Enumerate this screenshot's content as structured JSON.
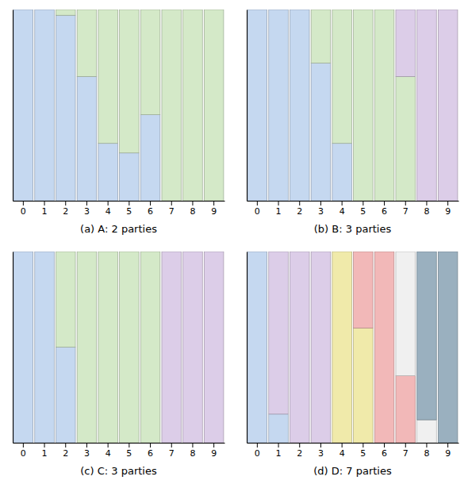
{
  "chart_data": [
    {
      "type": "bar",
      "stacked": true,
      "tick_labels": "x",
      "x_label": "(a) A: 2 parties",
      "categories": [
        "0",
        "1",
        "2",
        "3",
        "4",
        "5",
        "6",
        "7",
        "8",
        "9"
      ],
      "ylim": [
        0,
        1.0
      ],
      "series": [
        {
          "color": "#c5d8f0",
          "values": [
            1.0,
            1.0,
            0.97,
            0.65,
            0.3,
            0.25,
            0.45,
            0.0,
            0.0,
            0.0
          ]
        },
        {
          "color": "#d4e9c8",
          "values": [
            0.0,
            0.0,
            0.03,
            0.35,
            0.7,
            0.75,
            0.55,
            1.0,
            1.0,
            1.0
          ]
        }
      ]
    },
    {
      "type": "bar",
      "stacked": true,
      "tick_labels": "x",
      "x_label": "(b) B: 3 parties",
      "categories": [
        "0",
        "1",
        "2",
        "3",
        "4",
        "5",
        "6",
        "7",
        "8",
        "9"
      ],
      "ylim": [
        0,
        1.0
      ],
      "series": [
        {
          "color": "#c5d8f0",
          "values": [
            1.0,
            1.0,
            1.0,
            0.72,
            0.3,
            0.0,
            0.0,
            0.0,
            0.0,
            0.0
          ]
        },
        {
          "color": "#d4e9c8",
          "values": [
            0.0,
            0.0,
            0.0,
            0.28,
            0.7,
            1.0,
            1.0,
            0.65,
            0.0,
            0.0
          ]
        },
        {
          "color": "#dccde8",
          "values": [
            0.0,
            0.0,
            0.0,
            0.0,
            0.0,
            0.0,
            0.0,
            0.35,
            1.0,
            1.0
          ]
        }
      ]
    },
    {
      "type": "bar",
      "stacked": true,
      "tick_labels": "x",
      "x_label": "(c) C: 3 parties",
      "categories": [
        "0",
        "1",
        "2",
        "3",
        "4",
        "5",
        "6",
        "7",
        "8",
        "9"
      ],
      "ylim": [
        0,
        1.0
      ],
      "series": [
        {
          "color": "#c5d8f0",
          "values": [
            1.0,
            1.0,
            0.5,
            0.0,
            0.0,
            0.0,
            0.0,
            0.0,
            0.0,
            0.0
          ]
        },
        {
          "color": "#d4e9c8",
          "values": [
            0.0,
            0.0,
            0.5,
            1.0,
            1.0,
            1.0,
            1.0,
            0.0,
            0.0,
            0.0
          ]
        },
        {
          "color": "#dccde8",
          "values": [
            0.0,
            0.0,
            0.0,
            0.0,
            0.0,
            0.0,
            0.0,
            1.0,
            1.0,
            1.0
          ]
        }
      ]
    },
    {
      "type": "bar",
      "stacked": true,
      "tick_labels": "x",
      "x_label": "(d) D: 7 parties",
      "categories": [
        "0",
        "1",
        "2",
        "3",
        "4",
        "5",
        "6",
        "7",
        "8",
        "9"
      ],
      "ylim": [
        0,
        1.0
      ],
      "series": [
        {
          "color": "#c5d8f0",
          "values": [
            1.0,
            0.15,
            0.0,
            0.0,
            0.0,
            0.0,
            0.0,
            0.0,
            0.0,
            0.0
          ]
        },
        {
          "color": "#dccde8",
          "values": [
            0.0,
            0.85,
            1.0,
            1.0,
            0.0,
            0.0,
            0.0,
            0.0,
            0.0,
            0.0
          ]
        },
        {
          "color": "#d4e9c8",
          "values": [
            0.0,
            0.0,
            0.0,
            0.0,
            0.0,
            0.0,
            0.0,
            0.0,
            0.0,
            0.0
          ]
        },
        {
          "color": "#f0eaaa",
          "values": [
            0.0,
            0.0,
            0.0,
            0.0,
            1.0,
            0.6,
            0.0,
            0.0,
            0.0,
            0.0
          ]
        },
        {
          "color": "#f2b8b8",
          "values": [
            0.0,
            0.0,
            0.0,
            0.0,
            0.0,
            0.4,
            1.0,
            0.35,
            0.0,
            0.0
          ]
        },
        {
          "color": "#f0f0f0",
          "values": [
            0.0,
            0.0,
            0.0,
            0.0,
            0.0,
            0.0,
            0.0,
            0.65,
            0.12,
            0.0
          ]
        },
        {
          "color": "#9ab0bf",
          "values": [
            0.0,
            0.0,
            0.0,
            0.0,
            0.0,
            0.0,
            0.0,
            0.0,
            0.88,
            1.0
          ]
        }
      ]
    }
  ]
}
